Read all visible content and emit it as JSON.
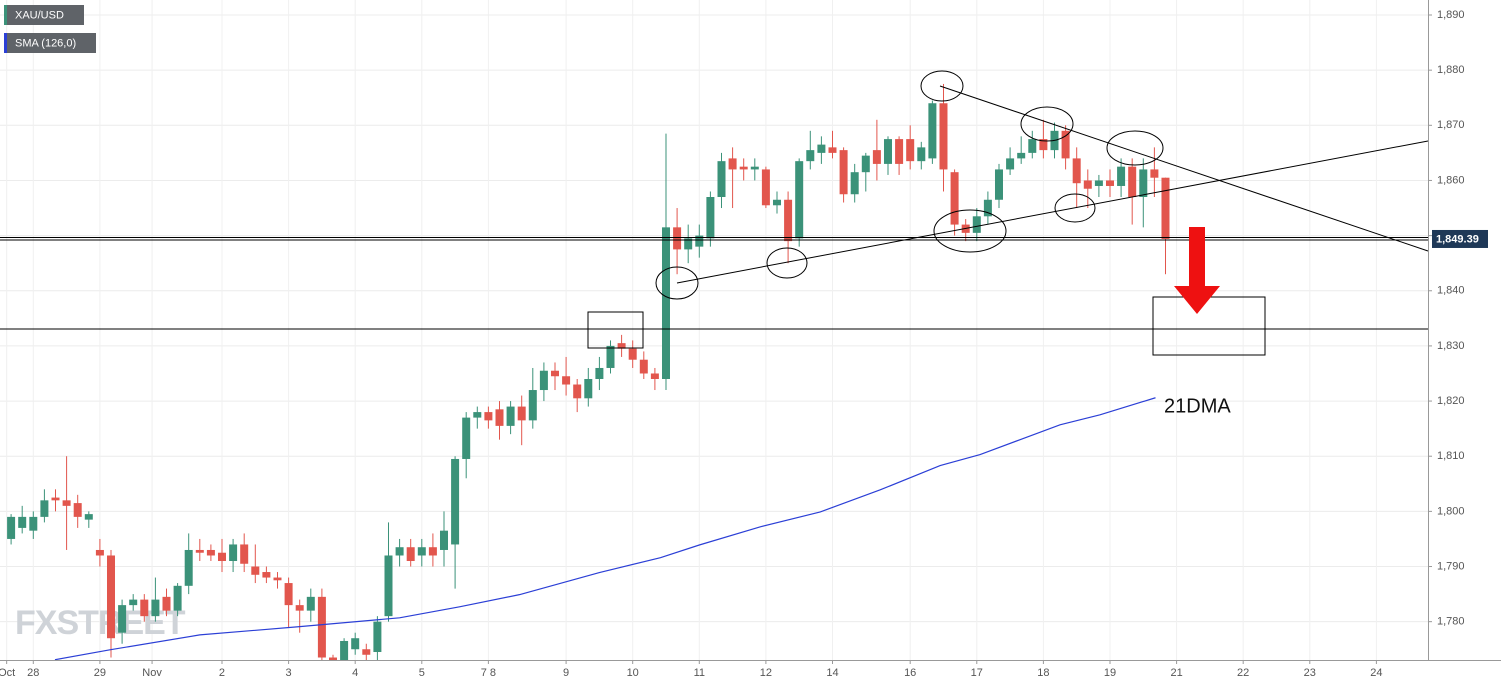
{
  "chart_data": {
    "type": "candlestick",
    "symbol": "XAU/USD",
    "up_color": "#3b9279",
    "down_color": "#e2564d",
    "open": [
      1795,
      1797,
      1796.5,
      1799,
      1802.5,
      1802,
      1801.5,
      1798.5,
      1793,
      1792,
      1778,
      1783,
      1784,
      1781,
      1784.5,
      1782,
      1786.5,
      1793,
      1793,
      1792.5,
      1791,
      1794,
      1790,
      1789,
      1788,
      1787,
      1783,
      1782,
      1784.5,
      1773.5,
      1770,
      1775,
      1775,
      1774.5,
      1781,
      1792,
      1793.5,
      1792,
      1793.5,
      1793,
      1794,
      1809.5,
      1817,
      1818,
      1818.5,
      1815.5,
      1819,
      1816.5,
      1822,
      1825.5,
      1824.5,
      1823,
      1820.5,
      1824,
      1826,
      1830.5,
      1829.5,
      1827.5,
      1825,
      1824,
      1851.5,
      1847.5,
      1848,
      1849.5,
      1857,
      1864,
      1862.5,
      1862,
      1862,
      1855.5,
      1856.5,
      1849.5,
      1863.5,
      1865,
      1866,
      1865.5,
      1857.5,
      1861.5,
      1865.5,
      1863,
      1867.5,
      1867.5,
      1863.5,
      1864,
      1874,
      1861.5,
      1852,
      1850.5,
      1853.5,
      1856.5,
      1862,
      1864,
      1865,
      1867.5,
      1865.5,
      1869,
      1864,
      1860,
      1859,
      1860,
      1859,
      1862.5,
      1857,
      1862,
      1860.5
    ],
    "high": [
      1799.5,
      1801,
      1800,
      1804,
      1804,
      1810,
      1803,
      1800,
      1795,
      1793,
      1784,
      1785,
      1785,
      1788,
      1786,
      1787,
      1796,
      1795,
      1794,
      1795,
      1795,
      1796,
      1794,
      1790,
      1789,
      1788,
      1784,
      1786,
      1786,
      1774,
      1777,
      1778,
      1776,
      1781,
      1798,
      1795,
      1795,
      1795,
      1796,
      1800,
      1810,
      1818,
      1819,
      1819,
      1820,
      1820,
      1821,
      1826,
      1827,
      1827,
      1828,
      1824,
      1826,
      1828,
      1831,
      1832,
      1831,
      1829,
      1826,
      1868.5,
      1855,
      1852,
      1852,
      1858,
      1865,
      1866,
      1864,
      1864,
      1862.5,
      1858,
      1858,
      1864,
      1869,
      1868,
      1869,
      1866,
      1863,
      1865,
      1871,
      1868,
      1868,
      1870,
      1867,
      1874.5,
      1877.5,
      1862,
      1853,
      1855,
      1858,
      1863,
      1866,
      1868,
      1869,
      1871,
      1870.5,
      1870,
      1866,
      1862,
      1861,
      1862,
      1864,
      1864,
      1864,
      1866,
      1860.5
    ],
    "low": [
      1794,
      1796,
      1795,
      1798,
      1800,
      1793,
      1797,
      1797,
      1790,
      1773.5,
      1776,
      1782,
      1780,
      1780,
      1781,
      1781,
      1785,
      1791,
      1791,
      1789,
      1789,
      1789,
      1787,
      1787,
      1786,
      1779,
      1778,
      1780,
      1773,
      1768,
      1769,
      1774,
      1773,
      1773,
      1780,
      1790,
      1790,
      1790,
      1790,
      1790,
      1786,
      1806,
      1815,
      1815,
      1813,
      1814,
      1812,
      1815,
      1820,
      1822,
      1821,
      1818,
      1819,
      1822,
      1825,
      1828,
      1826,
      1824,
      1822,
      1822,
      1843,
      1845,
      1846,
      1848,
      1855,
      1855,
      1860,
      1860,
      1855,
      1854,
      1845,
      1848,
      1862,
      1863,
      1864,
      1856,
      1856,
      1858,
      1860,
      1861,
      1861,
      1862,
      1862,
      1863,
      1858,
      1850,
      1849,
      1849,
      1852,
      1855,
      1861,
      1863,
      1864,
      1864,
      1864,
      1862,
      1855,
      1855,
      1857,
      1857,
      1857,
      1852,
      1851.5,
      1857,
      1843
    ],
    "close": [
      1799,
      1799,
      1799,
      1802,
      1802,
      1801,
      1799,
      1799.5,
      1792,
      1777,
      1783,
      1784,
      1781,
      1784,
      1782,
      1786.5,
      1793,
      1792.5,
      1792,
      1791,
      1794,
      1790.5,
      1788.5,
      1788,
      1787.5,
      1783,
      1782,
      1784.5,
      1773.5,
      1770,
      1776.5,
      1777,
      1774,
      1780,
      1792,
      1793.5,
      1791,
      1793.5,
      1792,
      1796.5,
      1809.5,
      1817,
      1818,
      1816.5,
      1815.5,
      1819,
      1816.5,
      1822,
      1825.5,
      1824.5,
      1823,
      1820.5,
      1824,
      1826,
      1830,
      1829.5,
      1827.5,
      1825,
      1824,
      1851.5,
      1847.5,
      1849.5,
      1850,
      1857,
      1863.5,
      1862,
      1862,
      1862.5,
      1855.5,
      1856.5,
      1849,
      1863.5,
      1865.5,
      1866.5,
      1865,
      1857.5,
      1861.5,
      1864.5,
      1863,
      1867.5,
      1863,
      1863.5,
      1866,
      1874,
      1862,
      1852,
      1850.5,
      1853.5,
      1856.5,
      1862,
      1864,
      1865,
      1867.5,
      1865.5,
      1869,
      1864,
      1859.5,
      1858.5,
      1860,
      1859,
      1862.5,
      1857,
      1862,
      1860.5,
      1849.39
    ],
    "sma": {
      "name": "SMA (126,0)",
      "color": "#2b3fd6",
      "x": [
        4.95,
        9.9,
        18,
        27,
        36,
        41.4,
        46.8,
        54,
        59.5,
        63,
        68.5,
        73.9,
        79.3,
        84.7,
        88.3,
        91.9,
        95.5,
        99.1,
        104.1
      ],
      "values": [
        1773.1,
        1774.9,
        1777.6,
        1779.1,
        1780.7,
        1782.7,
        1784.9,
        1788.9,
        1791.6,
        1793.9,
        1797.2,
        1799.9,
        1803.9,
        1808.3,
        1810.3,
        1813.0,
        1815.7,
        1817.5,
        1820.6
      ]
    },
    "last_price": {
      "value": 1849.39,
      "label": "1,849.39"
    },
    "annotation": "21DMA",
    "watermark": "FXSTREET",
    "xlim": [
      0,
      128.65
    ],
    "ylim": [
      1773.05,
      1892.72
    ],
    "xticks": [
      {
        "value": 0.6,
        "label": "Oct"
      },
      {
        "value": 3,
        "label": "28"
      },
      {
        "value": 9,
        "label": "29"
      },
      {
        "value": 13.7,
        "label": "Nov"
      },
      {
        "value": 20,
        "label": "2"
      },
      {
        "value": 26,
        "label": "3"
      },
      {
        "value": 32,
        "label": "4"
      },
      {
        "value": 38,
        "label": "5"
      },
      {
        "value": 44,
        "label": "7 8"
      },
      {
        "value": 51,
        "label": "9"
      },
      {
        "value": 57,
        "label": "10"
      },
      {
        "value": 63,
        "label": "11"
      },
      {
        "value": 69,
        "label": "12"
      },
      {
        "value": 75,
        "label": "14"
      },
      {
        "value": 82,
        "label": "16"
      },
      {
        "value": 88,
        "label": "17"
      },
      {
        "value": 94,
        "label": "18"
      },
      {
        "value": 100,
        "label": "19"
      },
      {
        "value": 106,
        "label": "21"
      },
      {
        "value": 112,
        "label": "22"
      },
      {
        "value": 118,
        "label": "23"
      },
      {
        "value": 124,
        "label": "24"
      }
    ],
    "yticks": [
      {
        "value": 1780,
        "label": "1,780"
      },
      {
        "value": 1790,
        "label": "1,790"
      },
      {
        "value": 1800,
        "label": "1,800"
      },
      {
        "value": 1810,
        "label": "1,810"
      },
      {
        "value": 1820,
        "label": "1,820"
      },
      {
        "value": 1830,
        "label": "1,830"
      },
      {
        "value": 1840,
        "label": "1,840"
      },
      {
        "value": 1850,
        "label": "1,850"
      },
      {
        "value": 1860,
        "label": "1,860"
      },
      {
        "value": 1870,
        "label": "1,870"
      },
      {
        "value": 1880,
        "label": "1,880"
      },
      {
        "value": 1890,
        "label": "1,890"
      }
    ],
    "grid": true
  }
}
